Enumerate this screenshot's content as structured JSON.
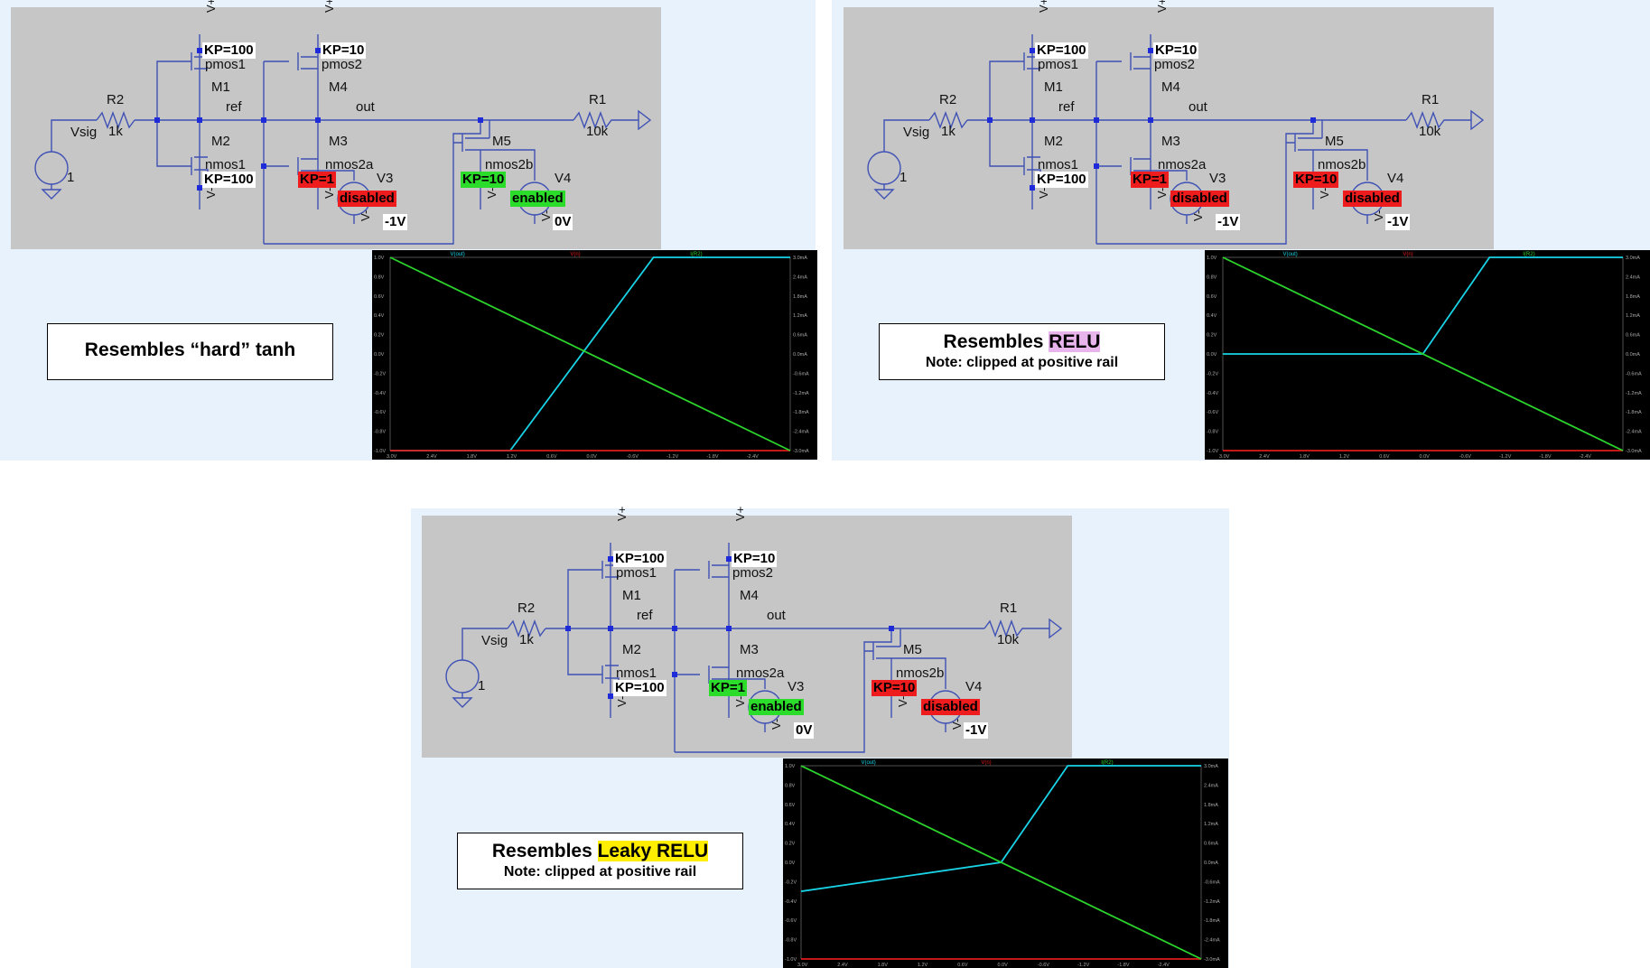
{
  "panels": [
    {
      "id": "tanh",
      "schematic": {
        "supply_pos": "V+",
        "supply_neg": "V-",
        "kp_m1": "KP=100",
        "kp_m4": "KP=10",
        "kp_m2": "KP=100",
        "m1_model": "pmos1",
        "m1_name": "M1",
        "m4_model": "pmos2",
        "m4_name": "M4",
        "m2_name": "M2",
        "m2_model": "nmos1",
        "m3_name": "M3",
        "m3_model": "nmos2a",
        "m5_name": "M5",
        "m5_model": "nmos2b",
        "r2_name": "R2",
        "r2_value": "1k",
        "r1_name": "R1",
        "r1_value": "10k",
        "vsig_name": "Vsig",
        "vsig_value": "1",
        "net_ref": "ref",
        "net_out": "out",
        "v3_name": "V3",
        "v4_name": "V4",
        "kp_m3": {
          "text": "KP=1",
          "state": "red"
        },
        "v3_state": {
          "text": "disabled",
          "state": "red"
        },
        "v3_value": "-1V",
        "kp_m5": {
          "text": "KP=10",
          "state": "green"
        },
        "v4_state": {
          "text": "enabled",
          "state": "green"
        },
        "v4_value": "0V"
      },
      "caption": {
        "prefix": "Resembles “hard” tanh",
        "highlight": "",
        "note": ""
      }
    },
    {
      "id": "relu",
      "schematic": {
        "supply_pos": "V+",
        "supply_neg": "V-",
        "kp_m1": "KP=100",
        "kp_m4": "KP=10",
        "kp_m2": "KP=100",
        "m1_model": "pmos1",
        "m1_name": "M1",
        "m4_model": "pmos2",
        "m4_name": "M4",
        "m2_name": "M2",
        "m2_model": "nmos1",
        "m3_name": "M3",
        "m3_model": "nmos2a",
        "m5_name": "M5",
        "m5_model": "nmos2b",
        "r2_name": "R2",
        "r2_value": "1k",
        "r1_name": "R1",
        "r1_value": "10k",
        "vsig_name": "Vsig",
        "vsig_value": "1",
        "net_ref": "ref",
        "net_out": "out",
        "v3_name": "V3",
        "v4_name": "V4",
        "kp_m3": {
          "text": "KP=1",
          "state": "red"
        },
        "v3_state": {
          "text": "disabled",
          "state": "red"
        },
        "v3_value": "-1V",
        "kp_m5": {
          "text": "KP=10",
          "state": "red"
        },
        "v4_state": {
          "text": "disabled",
          "state": "red"
        },
        "v4_value": "-1V"
      },
      "caption": {
        "prefix": "Resembles ",
        "highlight": "RELU",
        "highlight_color": "#e8b4ec",
        "note": "Note: clipped at positive rail"
      }
    },
    {
      "id": "leaky",
      "schematic": {
        "supply_pos": "V+",
        "supply_neg": "V-",
        "kp_m1": "KP=100",
        "kp_m4": "KP=10",
        "kp_m2": "KP=100",
        "m1_model": "pmos1",
        "m1_name": "M1",
        "m4_model": "pmos2",
        "m4_name": "M4",
        "m2_name": "M2",
        "m2_model": "nmos1",
        "m3_name": "M3",
        "m3_model": "nmos2a",
        "m5_name": "M5",
        "m5_model": "nmos2b",
        "r2_name": "R2",
        "r2_value": "1k",
        "r1_name": "R1",
        "r1_value": "10k",
        "vsig_name": "Vsig",
        "vsig_value": "1",
        "net_ref": "ref",
        "net_out": "out",
        "v3_name": "V3",
        "v4_name": "V4",
        "kp_m3": {
          "text": "KP=1",
          "state": "green"
        },
        "v3_state": {
          "text": "enabled",
          "state": "green"
        },
        "v3_value": "0V",
        "kp_m5": {
          "text": "KP=10",
          "state": "red"
        },
        "v4_state": {
          "text": "disabled",
          "state": "red"
        },
        "v4_value": "-1V"
      },
      "caption": {
        "prefix": "Resembles ",
        "highlight": "Leaky RELU",
        "highlight_color": "#ffee00",
        "note": "Note: clipped at positive rail"
      }
    }
  ],
  "plots": {
    "legend": [
      "V(out)",
      "V(n)",
      "I(R2)"
    ],
    "legend_colors": [
      "#19d3e6",
      "#e01c1c",
      "#2bd32b"
    ],
    "left_ticks": [
      "1.0V",
      "0.8V",
      "0.6V",
      "0.4V",
      "0.2V",
      "0.0V",
      "-0.2V",
      "-0.4V",
      "-0.6V",
      "-0.8V",
      "-1.0V"
    ],
    "right_ticks": [
      "3.0mA",
      "2.4mA",
      "1.8mA",
      "1.2mA",
      "0.6mA",
      "0.0mA",
      "-0.6mA",
      "-1.2mA",
      "-1.8mA",
      "-2.4mA",
      "-3.0mA"
    ],
    "x_ticks": [
      "3.0V",
      "2.4V",
      "1.8V",
      "1.2V",
      "0.6V",
      "0.0V",
      "-0.6V",
      "-1.2V",
      "-1.8V",
      "-2.4V"
    ]
  },
  "chart_data": [
    {
      "type": "line",
      "panel": "tanh",
      "xlim": [
        3.0,
        -3.0
      ],
      "ylim": [
        -1.0,
        1.0
      ],
      "y2lim": [
        -3.0,
        3.0
      ],
      "series": [
        {
          "name": "V(out)",
          "color": "#19d3e6",
          "x": [
            3.0,
            1.2,
            -0.95,
            -3.0
          ],
          "y": [
            -1.0,
            -1.0,
            1.0,
            1.0
          ]
        },
        {
          "name": "V(n)",
          "color": "#e01c1c",
          "x": [
            3.0,
            -3.0
          ],
          "y": [
            -1.0,
            -1.0
          ]
        },
        {
          "name": "I(R2)",
          "color": "#2bd32b",
          "x": [
            3.0,
            -3.0
          ],
          "y": [
            3.0,
            -3.0
          ],
          "axis": "right"
        }
      ]
    },
    {
      "type": "line",
      "panel": "relu",
      "xlim": [
        3.0,
        -3.0
      ],
      "ylim": [
        -1.0,
        1.0
      ],
      "y2lim": [
        -3.0,
        3.0
      ],
      "series": [
        {
          "name": "V(out)",
          "color": "#19d3e6",
          "x": [
            3.0,
            0.0,
            -1.0,
            -3.0
          ],
          "y": [
            0.0,
            0.0,
            1.0,
            1.0
          ]
        },
        {
          "name": "V(n)",
          "color": "#e01c1c",
          "x": [
            3.0,
            -3.0
          ],
          "y": [
            -1.0,
            -1.0
          ]
        },
        {
          "name": "I(R2)",
          "color": "#2bd32b",
          "x": [
            3.0,
            -3.0
          ],
          "y": [
            3.0,
            -3.0
          ],
          "axis": "right"
        }
      ]
    },
    {
      "type": "line",
      "panel": "leaky",
      "xlim": [
        3.0,
        -3.0
      ],
      "ylim": [
        -1.0,
        1.0
      ],
      "y2lim": [
        -3.0,
        3.0
      ],
      "series": [
        {
          "name": "V(out)",
          "color": "#19d3e6",
          "x": [
            3.0,
            0.0,
            -1.0,
            -3.0
          ],
          "y": [
            -0.3,
            0.0,
            1.0,
            1.0
          ]
        },
        {
          "name": "V(n)",
          "color": "#e01c1c",
          "x": [
            3.0,
            -3.0
          ],
          "y": [
            -1.0,
            -1.0
          ]
        },
        {
          "name": "I(R2)",
          "color": "#2bd32b",
          "x": [
            3.0,
            -3.0
          ],
          "y": [
            3.0,
            -3.0
          ],
          "axis": "right"
        }
      ]
    }
  ]
}
